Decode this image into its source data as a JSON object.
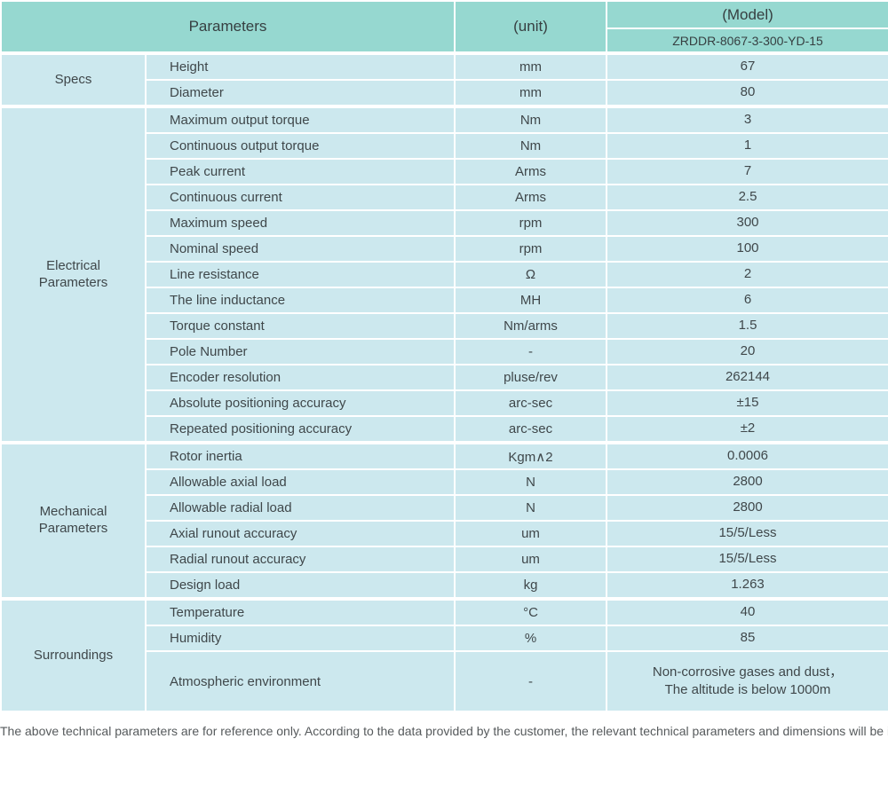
{
  "header": {
    "parameters_label": "Parameters",
    "unit_label": "(unit)",
    "model_label": "(Model)",
    "model_value": "ZRDDR-8067-3-300-YD-15"
  },
  "sections": [
    {
      "name": "Specs",
      "rows": [
        {
          "param": "Height",
          "unit": "mm",
          "value": "67"
        },
        {
          "param": "Diameter",
          "unit": "mm",
          "value": "80"
        }
      ]
    },
    {
      "name": "Electrical\nParameters",
      "rows": [
        {
          "param": "Maximum output torque",
          "unit": "Nm",
          "value": "3"
        },
        {
          "param": "Continuous output torque",
          "unit": "Nm",
          "value": "1"
        },
        {
          "param": "Peak current",
          "unit": "Arms",
          "value": "7"
        },
        {
          "param": "Continuous current",
          "unit": "Arms",
          "value": "2.5"
        },
        {
          "param": "Maximum speed",
          "unit": "rpm",
          "value": "300"
        },
        {
          "param": "Nominal speed",
          "unit": "rpm",
          "value": "100"
        },
        {
          "param": "Line resistance",
          "unit": "Ω",
          "value": "2"
        },
        {
          "param": "The line inductance",
          "unit": "MH",
          "value": "6"
        },
        {
          "param": "Torque constant",
          "unit": "Nm/arms",
          "value": "1.5"
        },
        {
          "param": "Pole Number",
          "unit": "-",
          "value": "20"
        },
        {
          "param": "Encoder resolution",
          "unit": "pluse/rev",
          "value": "262144"
        },
        {
          "param": "Absolute positioning accuracy",
          "unit": "arc-sec",
          "value": "±15"
        },
        {
          "param": "Repeated positioning accuracy",
          "unit": "arc-sec",
          "value": "±2"
        }
      ]
    },
    {
      "name": "Mechanical\nParameters",
      "rows": [
        {
          "param": "Rotor inertia",
          "unit": "Kgm∧2",
          "value": "0.0006"
        },
        {
          "param": "Allowable axial load",
          "unit": "N",
          "value": "2800"
        },
        {
          "param": "Allowable radial load",
          "unit": "N",
          "value": "2800"
        },
        {
          "param": "Axial runout accuracy",
          "unit": "um",
          "value": "15/5/Less"
        },
        {
          "param": "Radial runout accuracy",
          "unit": "um",
          "value": "15/5/Less"
        },
        {
          "param": "Design load",
          "unit": "kg",
          "value": "1.263"
        }
      ]
    },
    {
      "name": "Surroundings",
      "rows": [
        {
          "param": "Temperature",
          "unit": "°C",
          "value": "40"
        },
        {
          "param": "Humidity",
          "unit": "%",
          "value": "85"
        },
        {
          "param": "Atmospheric environment",
          "unit": "-",
          "value": "Non-corrosive gases and dust，\nThe altitude is below 1000m"
        }
      ]
    }
  ],
  "footer": {
    "note": "The above technical parameters are for reference only. According to the data provided by the customer, the relevant technical parameters and dimensions will be issued."
  },
  "colors": {
    "header_bg": "#96d8d0",
    "body_bg": "#cce8ee",
    "border": "#ffffff",
    "text": "#3f474a"
  }
}
